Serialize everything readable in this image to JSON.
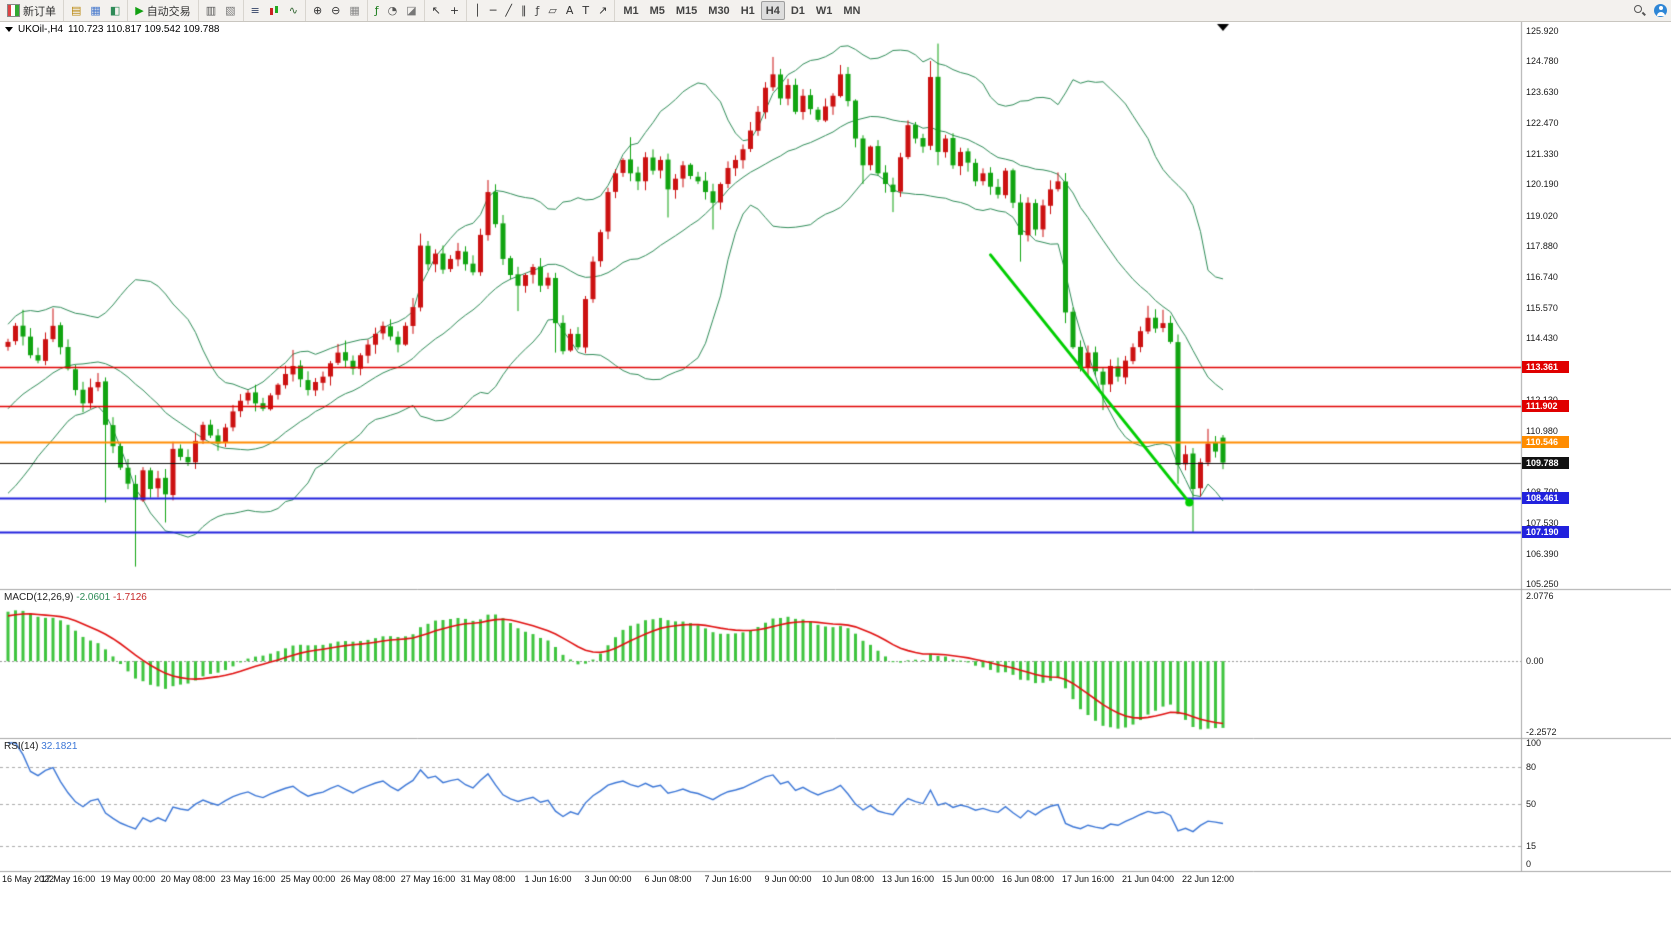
{
  "toolbar": {
    "groups": [
      {
        "items": [
          {
            "name": "new-order",
            "icon": "new-order",
            "label": "新订单"
          }
        ]
      },
      {
        "items": [
          {
            "name": "market-watch",
            "glyph": "▤",
            "color": "#B8860B"
          },
          {
            "name": "data-window",
            "glyph": "▦",
            "color": "#4477CC"
          },
          {
            "name": "navigator",
            "glyph": "◧",
            "color": "#2E8B57"
          }
        ]
      },
      {
        "items": [
          {
            "name": "autotrade",
            "glyph": "▶",
            "color": "#12A012",
            "label": "自动交易"
          }
        ]
      },
      {
        "items": [
          {
            "name": "new-chart",
            "glyph": "▥",
            "color": "#555555"
          },
          {
            "name": "profiles",
            "glyph": "▧",
            "color": "#777777"
          }
        ]
      },
      {
        "items": [
          {
            "name": "chart-bars",
            "glyph": "≡",
            "color": "#334466"
          },
          {
            "name": "chart-candles",
            "icon": "candles"
          },
          {
            "name": "chart-line",
            "glyph": "∿",
            "color": "#336633"
          }
        ]
      },
      {
        "items": [
          {
            "name": "zoom-in",
            "glyph": "⊕",
            "color": "#333333"
          },
          {
            "name": "zoom-out",
            "glyph": "⊖",
            "color": "#333333"
          },
          {
            "name": "grid",
            "glyph": "▦",
            "color": "#888888"
          }
        ]
      },
      {
        "items": [
          {
            "name": "indicators",
            "glyph": "ƒ",
            "color": "#1E7E1E"
          },
          {
            "name": "periods",
            "glyph": "◔",
            "color": "#555555"
          },
          {
            "name": "templates",
            "glyph": "◪",
            "color": "#777777"
          }
        ]
      },
      {
        "items": [
          {
            "name": "cursor",
            "glyph": "↖",
            "color": "#333333"
          },
          {
            "name": "crosshair",
            "glyph": "+",
            "color": "#333333"
          }
        ]
      },
      {
        "items": [
          {
            "name": "vertical-line",
            "glyph": "│",
            "color": "#333333"
          },
          {
            "name": "horizontal-line",
            "glyph": "─",
            "color": "#333333"
          },
          {
            "name": "trendline-tool",
            "glyph": "╱",
            "color": "#333333"
          },
          {
            "name": "equidistant-channel",
            "glyph": "∥",
            "color": "#333333"
          },
          {
            "name": "fibonacci",
            "glyph": "ƒ",
            "color": "#444444"
          },
          {
            "name": "shapes",
            "glyph": "▱",
            "color": "#444444"
          },
          {
            "name": "text",
            "glyph": "A",
            "color": "#333333"
          },
          {
            "name": "text-label",
            "glyph": "T",
            "color": "#333333"
          },
          {
            "name": "arrows",
            "glyph": "↗",
            "color": "#333333"
          }
        ]
      },
      {
        "tf": true,
        "items": [
          {
            "name": "tf-m1",
            "label": "M1"
          },
          {
            "name": "tf-m5",
            "label": "M5"
          },
          {
            "name": "tf-m15",
            "label": "M15"
          },
          {
            "name": "tf-m30",
            "label": "M30"
          },
          {
            "name": "tf-h1",
            "label": "H1"
          },
          {
            "name": "tf-h4",
            "label": "H4",
            "active": true
          },
          {
            "name": "tf-d1",
            "label": "D1"
          },
          {
            "name": "tf-w1",
            "label": "W1"
          },
          {
            "name": "tf-mn",
            "label": "MN"
          }
        ]
      }
    ],
    "right_items": [
      {
        "name": "search",
        "icon": "search"
      },
      {
        "name": "account",
        "icon": "user"
      }
    ]
  },
  "chart": {
    "title_symbol": "UKOil-,H4",
    "title_ohlc": "110.723 110.817 109.542 109.788"
  },
  "chart_data": {
    "type": "candlestick",
    "symbol": "UKOil-",
    "timeframe": "H4",
    "last_candle": {
      "o": 110.723,
      "h": 110.817,
      "l": 109.542,
      "c": 109.788
    },
    "price_axis": {
      "max": 125.92,
      "min": 105.25,
      "ticks": [
        "125.920",
        "124.780",
        "123.630",
        "122.470",
        "121.330",
        "120.190",
        "119.020",
        "117.880",
        "116.740",
        "115.570",
        "114.430",
        "113.290",
        "112.130",
        "110.980",
        "109.830",
        "108.700",
        "107.530",
        "106.390",
        "105.250"
      ]
    },
    "levels": [
      {
        "price": 113.361,
        "label": "113.361",
        "color": "#E00000",
        "width": 1.6
      },
      {
        "price": 111.902,
        "label": "111.902",
        "color": "#E00000",
        "width": 1.6
      },
      {
        "price": 110.546,
        "label": "110.546",
        "color": "#FF8C00",
        "width": 1.8
      },
      {
        "price": 109.788,
        "label": "109.788",
        "color": "#111111",
        "width": 1.1,
        "current": true
      },
      {
        "price": 108.461,
        "label": "108.461",
        "color": "#2222DD",
        "width": 1.8
      },
      {
        "price": 107.19,
        "label": "107.190",
        "color": "#2222DD",
        "width": 1.8
      }
    ],
    "trendline": {
      "from_bar": 131,
      "from_price": 117.55,
      "to_bar": 157.5,
      "to_price": 108.3,
      "color": "#00CE00"
    },
    "candles": {
      "bull_color": "#CC1111",
      "bear_color": "#11A411",
      "closes": [
        114.3,
        114.9,
        114.5,
        113.8,
        113.6,
        114.4,
        114.9,
        114.1,
        113.3,
        112.5,
        112.0,
        112.6,
        112.8,
        111.2,
        110.4,
        109.6,
        109.0,
        108.4,
        109.5,
        108.8,
        109.2,
        108.6,
        110.3,
        110.0,
        109.8,
        110.6,
        111.2,
        110.8,
        110.5,
        111.1,
        111.7,
        112.1,
        112.4,
        112.0,
        111.8,
        112.3,
        112.7,
        113.1,
        113.4,
        112.9,
        112.5,
        112.8,
        113.0,
        113.5,
        113.9,
        113.6,
        113.3,
        113.8,
        114.2,
        114.6,
        114.9,
        114.5,
        114.2,
        114.9,
        115.6,
        117.9,
        117.2,
        117.6,
        117.0,
        117.4,
        117.7,
        117.2,
        116.9,
        118.3,
        119.9,
        118.7,
        117.4,
        116.8,
        116.4,
        116.8,
        117.1,
        116.4,
        116.7,
        115.0,
        113.95,
        114.6,
        114.1,
        115.9,
        117.3,
        118.4,
        119.9,
        120.6,
        121.1,
        120.6,
        120.3,
        121.2,
        120.7,
        121.1,
        120.0,
        120.4,
        120.9,
        120.5,
        120.3,
        119.9,
        119.5,
        120.2,
        120.8,
        121.1,
        121.5,
        122.2,
        122.9,
        123.8,
        124.3,
        123.4,
        123.9,
        122.9,
        123.5,
        123.0,
        122.6,
        123.1,
        123.5,
        124.3,
        123.3,
        121.9,
        120.9,
        121.6,
        120.6,
        120.2,
        119.9,
        121.2,
        122.4,
        121.9,
        121.6,
        124.2,
        121.4,
        121.9,
        120.9,
        121.4,
        121.0,
        120.3,
        120.6,
        120.1,
        119.8,
        120.7,
        119.5,
        118.3,
        119.5,
        118.5,
        119.4,
        120.0,
        120.3,
        115.4,
        114.1,
        113.3,
        113.9,
        113.2,
        112.7,
        113.4,
        113.0,
        113.6,
        114.1,
        114.7,
        115.2,
        114.8,
        115.0,
        114.3,
        109.7,
        110.1,
        108.8,
        109.8,
        110.5,
        110.2,
        109.79
      ],
      "wick_overrides": {
        "2": {
          "h": 115.5
        },
        "6": {
          "h": 115.55
        },
        "13": {
          "l": 108.3
        },
        "17": {
          "l": 105.9
        },
        "21": {
          "l": 107.55
        },
        "38": {
          "h": 114.0
        },
        "45": {
          "h": 114.35
        },
        "55": {
          "h": 118.35
        },
        "60": {
          "h": 118.0
        },
        "64": {
          "h": 120.35
        },
        "68": {
          "l": 115.45
        },
        "73": {
          "l": 113.9
        },
        "83": {
          "h": 121.95
        },
        "88": {
          "l": 118.95
        },
        "94": {
          "l": 118.5
        },
        "102": {
          "h": 124.95
        },
        "111": {
          "h": 124.65
        },
        "114": {
          "l": 120.2
        },
        "118": {
          "l": 119.15
        },
        "123": {
          "h": 124.8
        },
        "124": {
          "h": 125.45,
          "l": 120.9
        },
        "135": {
          "l": 117.3
        },
        "141": {
          "l": 115.0
        },
        "146": {
          "l": 111.75
        },
        "152": {
          "h": 115.65
        },
        "154": {
          "h": 115.5
        },
        "156": {
          "l": 109.0
        },
        "158": {
          "l": 107.19
        },
        "160": {
          "h": 111.05
        }
      }
    },
    "offscreen_history": {
      "bars": 30,
      "start": 106.2,
      "end": 114.15
    },
    "bollinger": {
      "period": 20,
      "deviation": 2,
      "color": "#2E8B57"
    },
    "macd": {
      "label": "MACD(12,26,9)",
      "value_main": "-2.0601",
      "value_signal": "-1.7126",
      "scale_max": 2.0776,
      "scale_min": -2.2572,
      "axis": [
        "2.0776",
        "0.00",
        "-2.2572"
      ],
      "hist_color": "#3FC43F",
      "signal_color": "#E01010"
    },
    "rsi": {
      "label": "RSI(14)",
      "value": "32.1821",
      "axis": [
        "100",
        "80",
        "50",
        "15",
        "0"
      ],
      "levels": [
        80,
        50,
        15
      ],
      "color": "#3B76D6"
    },
    "time_labels": [
      "16 May 2022",
      "17 May 16:00",
      "19 May 00:00",
      "20 May 08:00",
      "23 May 16:00",
      "25 May 00:00",
      "26 May 08:00",
      "27 May 16:00",
      "31 May 08:00",
      "1 Jun 16:00",
      "3 Jun 00:00",
      "6 Jun 08:00",
      "7 Jun 16:00",
      "9 Jun 00:00",
      "10 Jun 08:00",
      "13 Jun 16:00",
      "15 Jun 00:00",
      "16 Jun 08:00",
      "17 Jun 16:00",
      "21 Jun 04:00",
      "22 Jun 12:00"
    ],
    "label_step_bars": 8
  }
}
